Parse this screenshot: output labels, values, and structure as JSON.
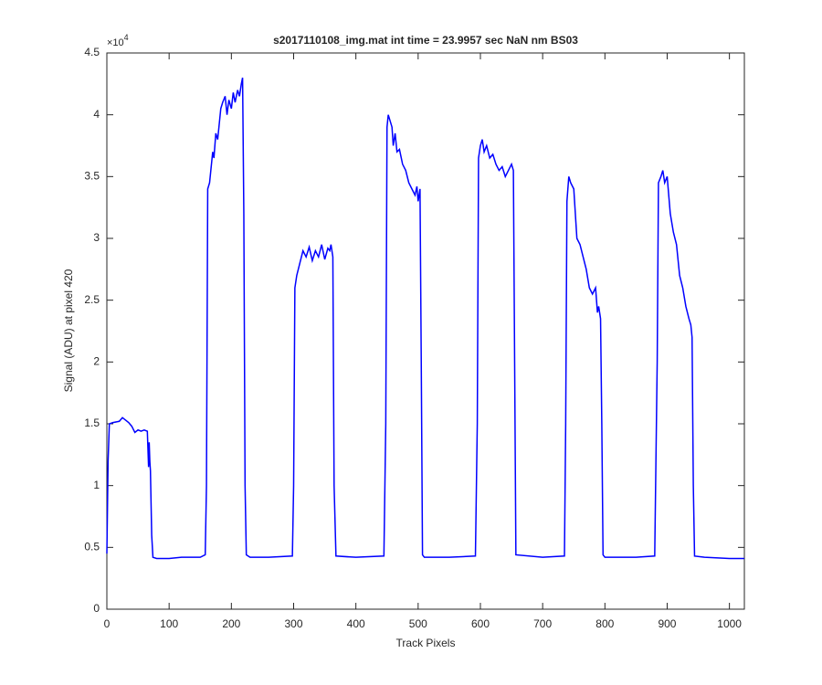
{
  "chart_data": {
    "type": "line",
    "title": "s2017110108_img.mat int time = 23.9957 sec  NaN nm BS03",
    "xlabel": "Track Pixels",
    "ylabel": "Signal (ADU) at pixel 420",
    "y_multiplier": {
      "base": "×10",
      "exponent": "4"
    },
    "xlim": [
      0,
      1024
    ],
    "ylim": [
      0,
      4.5
    ],
    "xticks": [
      0,
      100,
      200,
      300,
      400,
      500,
      600,
      700,
      800,
      900,
      1000
    ],
    "yticks": [
      0,
      0.5,
      1,
      1.5,
      2,
      2.5,
      3,
      3.5,
      4,
      4.5
    ],
    "grid": false,
    "series": [
      {
        "color": "#0000ff",
        "x": [
          0,
          2,
          4,
          10,
          20,
          25,
          30,
          35,
          40,
          45,
          50,
          55,
          60,
          65,
          67,
          68,
          69,
          70,
          72,
          74,
          80,
          100,
          120,
          150,
          158,
          160,
          162,
          165,
          168,
          170,
          172,
          175,
          178,
          180,
          183,
          186,
          190,
          193,
          196,
          200,
          203,
          206,
          210,
          213,
          216,
          218,
          220,
          222,
          224,
          230,
          260,
          298,
          300,
          302,
          305,
          310,
          315,
          320,
          325,
          330,
          335,
          340,
          345,
          350,
          355,
          358,
          360,
          363,
          365,
          368,
          400,
          445,
          448,
          450,
          452,
          455,
          458,
          460,
          463,
          466,
          470,
          475,
          480,
          485,
          490,
          495,
          498,
          500,
          503,
          505,
          507,
          510,
          550,
          592,
          595,
          597,
          600,
          603,
          606,
          610,
          615,
          620,
          625,
          630,
          635,
          640,
          645,
          650,
          653,
          655,
          657,
          700,
          735,
          737,
          739,
          742,
          745,
          750,
          755,
          760,
          765,
          770,
          775,
          780,
          785,
          788,
          790,
          793,
          795,
          797,
          800,
          850,
          880,
          884,
          886,
          890,
          893,
          896,
          900,
          905,
          910,
          915,
          920,
          925,
          930,
          935,
          938,
          940,
          942,
          944,
          960,
          1000,
          1024
        ],
        "values": [
          0.45,
          1.2,
          1.5,
          1.51,
          1.52,
          1.55,
          1.53,
          1.51,
          1.48,
          1.43,
          1.45,
          1.44,
          1.45,
          1.44,
          1.15,
          1.35,
          1.2,
          1.12,
          0.6,
          0.42,
          0.41,
          0.41,
          0.42,
          0.42,
          0.44,
          1.0,
          3.4,
          3.45,
          3.6,
          3.7,
          3.65,
          3.85,
          3.8,
          3.9,
          4.05,
          4.1,
          4.15,
          4.0,
          4.12,
          4.05,
          4.18,
          4.1,
          4.2,
          4.15,
          4.25,
          4.3,
          3.2,
          1.0,
          0.44,
          0.42,
          0.42,
          0.43,
          1.0,
          2.6,
          2.7,
          2.8,
          2.9,
          2.85,
          2.93,
          2.82,
          2.9,
          2.85,
          2.95,
          2.83,
          2.92,
          2.9,
          2.95,
          2.85,
          1.0,
          0.43,
          0.42,
          0.43,
          1.5,
          3.9,
          4.0,
          3.95,
          3.9,
          3.75,
          3.85,
          3.7,
          3.72,
          3.6,
          3.55,
          3.45,
          3.4,
          3.35,
          3.42,
          3.3,
          3.4,
          2.0,
          0.44,
          0.42,
          0.42,
          0.43,
          1.5,
          3.65,
          3.75,
          3.8,
          3.7,
          3.75,
          3.65,
          3.68,
          3.6,
          3.55,
          3.58,
          3.5,
          3.55,
          3.6,
          3.55,
          2.0,
          0.44,
          0.42,
          0.43,
          1.5,
          3.3,
          3.5,
          3.45,
          3.4,
          3.0,
          2.95,
          2.85,
          2.75,
          2.6,
          2.55,
          2.6,
          2.4,
          2.45,
          2.35,
          1.5,
          0.44,
          0.42,
          0.42,
          0.43,
          2.0,
          3.45,
          3.5,
          3.55,
          3.45,
          3.5,
          3.2,
          3.05,
          2.95,
          2.7,
          2.6,
          2.45,
          2.35,
          2.3,
          2.2,
          1.0,
          0.43,
          0.42,
          0.41,
          0.41
        ]
      }
    ]
  }
}
